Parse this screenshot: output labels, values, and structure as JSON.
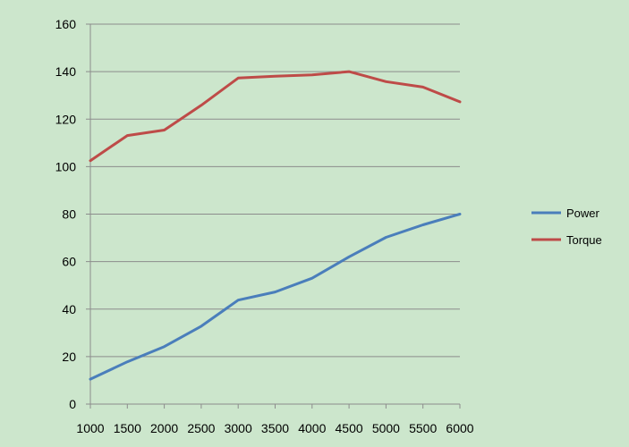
{
  "chart_data": {
    "type": "line",
    "title": "",
    "xlabel": "",
    "ylabel": "",
    "x": [
      1000,
      1500,
      2000,
      2500,
      3000,
      3500,
      4000,
      4500,
      5000,
      5500,
      6000
    ],
    "x_tick_labels": [
      "1000",
      "1500",
      "2000",
      "2500",
      "3000",
      "3500",
      "4000",
      "4500",
      "5000",
      "5500",
      "6000"
    ],
    "y_ticks": [
      0,
      20,
      40,
      60,
      80,
      100,
      120,
      140,
      160
    ],
    "y_tick_labels": [
      "0",
      "20",
      "40",
      "60",
      "80",
      "100",
      "120",
      "140",
      "160"
    ],
    "xlim": [
      1000,
      6000
    ],
    "ylim": [
      0,
      160
    ],
    "grid": "horizontal",
    "legend_position": "right",
    "background_color": "#cce6cc",
    "series": [
      {
        "name": "Power",
        "color": "#4a7ebb",
        "values": [
          10.5,
          17.8,
          24.2,
          32.8,
          43.8,
          47.2,
          53.0,
          62.0,
          70.2,
          75.5,
          80.0
        ]
      },
      {
        "name": "Torque",
        "color": "#be4b48",
        "values": [
          102.5,
          113.1,
          115.4,
          125.8,
          137.3,
          138.1,
          138.6,
          140.0,
          135.8,
          133.5,
          127.3
        ]
      }
    ]
  }
}
